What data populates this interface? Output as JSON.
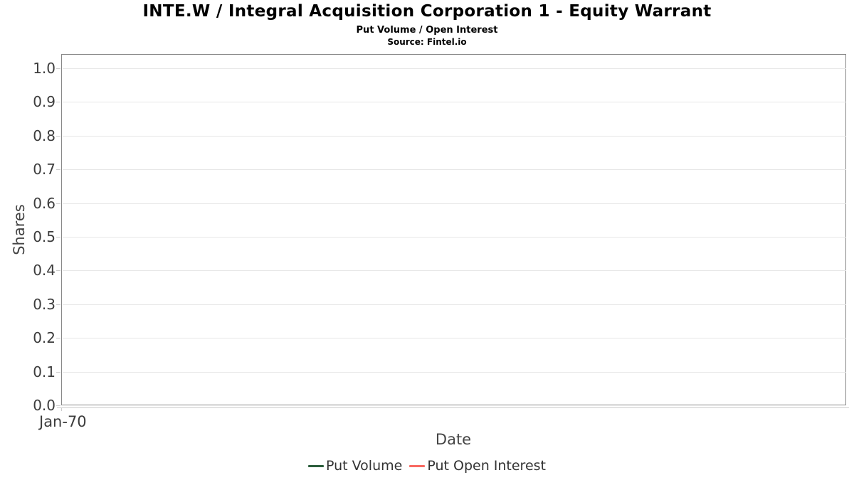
{
  "header": {
    "title": "INTE.W / Integral Acquisition Corporation 1 - Equity Warrant",
    "subtitle": "Put Volume / Open Interest",
    "source": "Source: Fintel.io"
  },
  "chart_data": {
    "type": "line",
    "title": "INTE.W / Integral Acquisition Corporation 1 - Equity Warrant",
    "subtitle": "Put Volume / Open Interest",
    "source_note": "Source: Fintel.io",
    "xlabel": "Date",
    "ylabel": "Shares",
    "x_tick_labels": [
      "Jan-70"
    ],
    "y_tick_labels": [
      "0.0",
      "0.1",
      "0.2",
      "0.3",
      "0.4",
      "0.5",
      "0.6",
      "0.7",
      "0.8",
      "0.9",
      "1.0"
    ],
    "ylim": [
      0.0,
      1.04
    ],
    "grid": true,
    "legend_position": "bottom-center",
    "series": [
      {
        "name": "Put Volume",
        "color": "#2b5d3b",
        "x": [],
        "values": []
      },
      {
        "name": "Put Open Interest",
        "color": "#f86961",
        "x": [],
        "values": []
      }
    ]
  },
  "colors": {
    "background": "#ffffff",
    "plot_border": "#888888",
    "gridline": "#e7e7e7",
    "tick_mark": "#cccccc",
    "tick_label_text": "#3c3c3c",
    "axis_title_text": "#444444",
    "heading_text": "#000000",
    "legend_text": "#333333",
    "put_volume": "#2b5d3b",
    "put_open_interest": "#f86961"
  }
}
